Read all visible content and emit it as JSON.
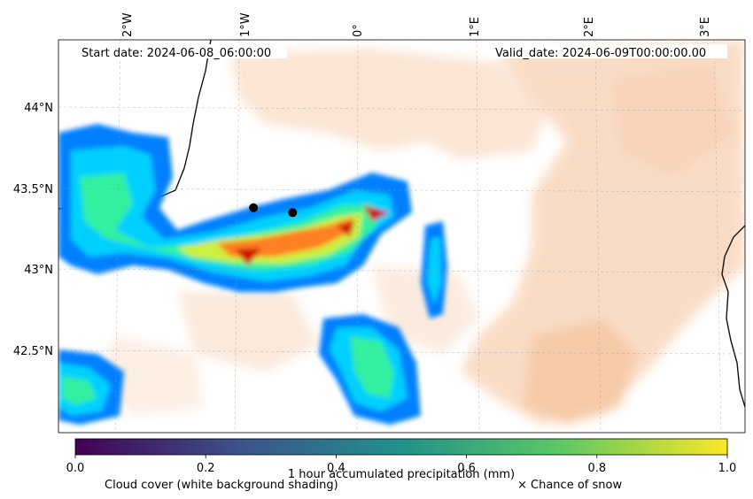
{
  "header": {
    "start_date": "Start date: 2024-06-08_06:00:00",
    "valid_date": "Valid_date: 2024-06-09T00:00:00.00"
  },
  "map": {
    "lon_labels": [
      "2°W",
      "1°W",
      "0°",
      "1°E",
      "2°E",
      "3°E"
    ],
    "lat_labels": [
      "44°N",
      "43.5°N",
      "43°N",
      "42.5°N"
    ],
    "points": [
      {
        "name": "marker-1",
        "lon": -0.88,
        "lat": 43.38
      },
      {
        "name": "marker-2",
        "lon": -0.55,
        "lat": 43.35
      }
    ]
  },
  "colorbar": {
    "ticks": [
      "0.0",
      "0.2",
      "0.4",
      "0.6",
      "0.8",
      "1.0"
    ],
    "label": "1 hour accumulated precipitation (mm)",
    "colormap": [
      "#440154",
      "#3b528b",
      "#21918c",
      "#5ec962",
      "#fde725"
    ]
  },
  "legend": {
    "cloud_cover": "Cloud cover (white background shading)",
    "snow": "× Chance of snow"
  },
  "colors": {
    "precip_ramp": [
      "#0066ff",
      "#00ccff",
      "#33ff99",
      "#ccff33",
      "#ff6600",
      "#cc0000"
    ],
    "cloud_tint": "#f4a460"
  }
}
